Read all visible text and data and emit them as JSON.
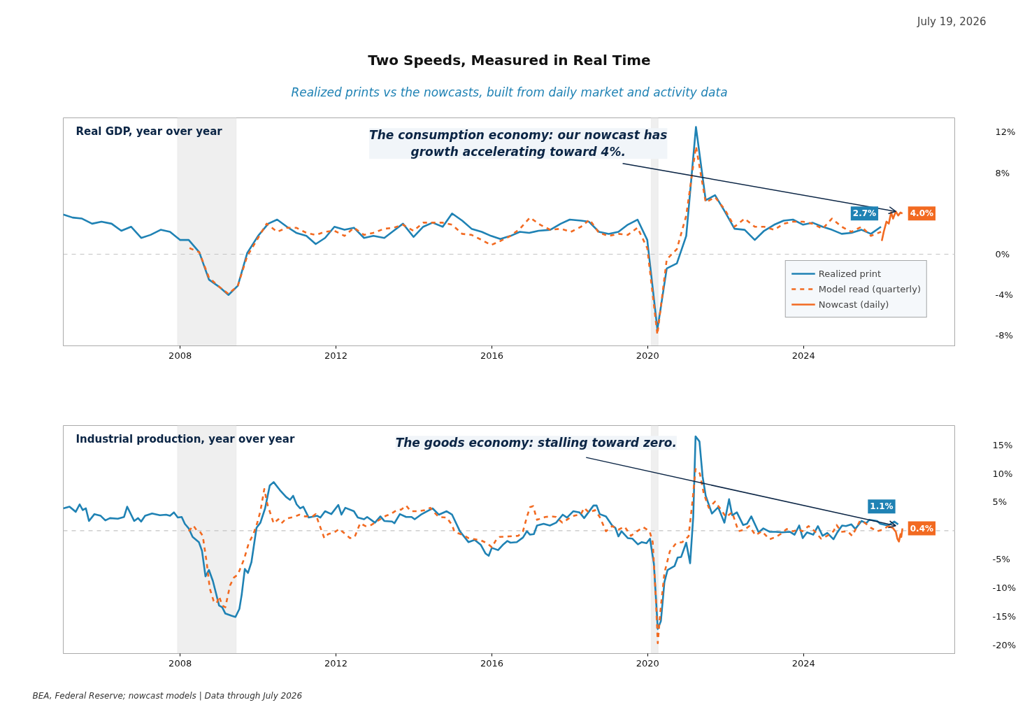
{
  "chart_data": [
    {
      "type": "line",
      "title": "Real GDP, year over year",
      "xlim": [
        2005,
        2027.9
      ],
      "ylim": [
        -9,
        13.4
      ],
      "xticks": [
        2008,
        2012,
        2016,
        2020,
        2024
      ],
      "yticks": [
        {
          "value": -8,
          "label": "-8%"
        },
        {
          "value": -4,
          "label": "-4%"
        },
        {
          "value": 0,
          "label": "0%"
        },
        {
          "value": 8,
          "label": "8%"
        },
        {
          "value": 12,
          "label": "12%"
        }
      ],
      "legend": "bottom right",
      "bands": [
        {
          "axis": "x",
          "from": 2007.93,
          "to": 2009.44,
          "color": "#efefef"
        },
        {
          "axis": "x",
          "from": 2020.09,
          "to": 2020.27,
          "color": "#efefef"
        }
      ],
      "ref_lines": [
        {
          "axis": "y",
          "value": 0,
          "color": "#c4c4c4",
          "line_style": "dashed"
        }
      ],
      "annotations": [
        "Two Speeds, Measured in Real Time",
        "Realized prints vs the nowcasts, built from daily market and activity data",
        "July 19, 2026",
        {
          "text": "The consumption economy: our nowcast has\ngrowth accelerating toward 4%.",
          "x": 2026.37,
          "y": 4.2
        }
      ],
      "series": [
        {
          "name": "Realized print",
          "color": "#1f82b4",
          "line_style": "solid",
          "x": [
            2005.0,
            2005.24,
            2005.48,
            2005.74,
            2005.98,
            2006.24,
            2006.49,
            2006.74,
            2007.0,
            2007.24,
            2007.5,
            2007.74,
            2008.0,
            2008.22,
            2008.49,
            2008.74,
            2009.0,
            2009.24,
            2009.48,
            2009.72,
            2010.0,
            2010.26,
            2010.49,
            2010.74,
            2010.98,
            2011.24,
            2011.48,
            2011.72,
            2011.96,
            2012.22,
            2012.46,
            2012.72,
            2012.96,
            2013.24,
            2013.48,
            2013.72,
            2013.99,
            2014.24,
            2014.48,
            2014.74,
            2014.98,
            2015.24,
            2015.48,
            2015.74,
            2015.98,
            2016.22,
            2016.48,
            2016.72,
            2016.96,
            2017.2,
            2017.5,
            2017.77,
            2018.0,
            2018.29,
            2018.49,
            2018.75,
            2019.0,
            2019.25,
            2019.49,
            2019.74,
            2019.99,
            2020.25,
            2020.49,
            2020.75,
            2020.99,
            2021.24,
            2021.49,
            2021.73,
            2021.98,
            2022.23,
            2022.49,
            2022.75,
            2022.99,
            2023.25,
            2023.49,
            2023.73,
            2023.99,
            2024.23,
            2024.49,
            2024.73,
            2024.98,
            2025.23,
            2025.49,
            2025.73,
            2025.99
          ],
          "values": [
            3.9,
            3.6,
            3.5,
            3.0,
            3.2,
            3.0,
            2.3,
            2.7,
            1.6,
            1.9,
            2.4,
            2.2,
            1.4,
            1.4,
            0.2,
            -2.5,
            -3.2,
            -4.0,
            -3.1,
            0.1,
            1.8,
            3.0,
            3.4,
            2.7,
            2.1,
            1.8,
            1.0,
            1.6,
            2.7,
            2.4,
            2.6,
            1.6,
            1.8,
            1.6,
            2.3,
            3.0,
            1.7,
            2.7,
            3.1,
            2.7,
            4.0,
            3.3,
            2.5,
            2.2,
            1.8,
            1.5,
            1.8,
            2.2,
            2.1,
            2.3,
            2.4,
            3.0,
            3.4,
            3.3,
            3.2,
            2.2,
            2.0,
            2.2,
            2.9,
            3.4,
            1.4,
            -7.4,
            -1.4,
            -0.9,
            1.8,
            12.5,
            5.3,
            5.8,
            4.2,
            2.5,
            2.4,
            1.4,
            2.3,
            2.9,
            3.3,
            3.4,
            2.9,
            3.1,
            2.7,
            2.4,
            2.0,
            2.1,
            2.4,
            2.0,
            2.7
          ],
          "value_labels": [
            null,
            null,
            null,
            null,
            null,
            null,
            null,
            null,
            null,
            null,
            null,
            null,
            null,
            null,
            null,
            null,
            null,
            null,
            null,
            null,
            null,
            null,
            null,
            null,
            null,
            null,
            null,
            null,
            null,
            null,
            null,
            null,
            null,
            null,
            null,
            null,
            null,
            null,
            null,
            null,
            null,
            null,
            null,
            null,
            null,
            null,
            null,
            null,
            null,
            null,
            null,
            null,
            null,
            null,
            null,
            null,
            null,
            null,
            null,
            null,
            null,
            null,
            null,
            null,
            null,
            null,
            null,
            null,
            null,
            null,
            null,
            null,
            null,
            null,
            null,
            null,
            null,
            null,
            null,
            null,
            null,
            null,
            null,
            null,
            "2.7%"
          ]
        },
        {
          "name": "Model read (quarterly)",
          "color": "#f26a21",
          "line_style": "dashed",
          "x": [
            2008.24,
            2008.49,
            2008.74,
            2009.0,
            2009.24,
            2009.48,
            2009.72,
            2010.0,
            2010.22,
            2010.49,
            2010.74,
            2010.98,
            2011.24,
            2011.48,
            2011.72,
            2011.96,
            2012.22,
            2012.46,
            2012.72,
            2012.96,
            2013.24,
            2013.48,
            2013.72,
            2013.99,
            2014.24,
            2014.48,
            2014.74,
            2014.98,
            2015.24,
            2015.48,
            2015.74,
            2015.98,
            2016.22,
            2016.48,
            2016.72,
            2016.98,
            2017.24,
            2017.5,
            2017.77,
            2018.03,
            2018.29,
            2018.51,
            2018.75,
            2019.0,
            2019.25,
            2019.49,
            2019.74,
            2019.99,
            2020.25,
            2020.49,
            2020.75,
            2020.99,
            2021.24,
            2021.49,
            2021.73,
            2021.98,
            2022.23,
            2022.49,
            2022.75,
            2022.99,
            2023.25,
            2023.49,
            2023.73,
            2023.99,
            2024.23,
            2024.49,
            2024.73,
            2024.98,
            2025.23,
            2025.49,
            2025.73,
            2025.99
          ],
          "values": [
            0.6,
            0.2,
            -2.3,
            -3.2,
            -3.9,
            -3.1,
            -0.2,
            1.6,
            3.0,
            2.2,
            2.6,
            2.6,
            2.1,
            1.9,
            2.2,
            2.3,
            1.8,
            2.6,
            1.9,
            2.1,
            2.5,
            2.6,
            2.9,
            2.3,
            3.1,
            3.1,
            3.1,
            2.9,
            2.0,
            1.9,
            1.4,
            0.9,
            1.3,
            1.8,
            2.5,
            3.6,
            2.9,
            2.4,
            2.5,
            2.2,
            2.7,
            3.4,
            2.1,
            1.8,
            2.0,
            1.9,
            2.6,
            0.6,
            -7.9,
            -0.5,
            0.5,
            3.8,
            10.6,
            5.1,
            5.6,
            4.4,
            2.7,
            3.5,
            2.7,
            2.7,
            2.4,
            3.0,
            3.2,
            3.2,
            3.0,
            2.5,
            3.5,
            2.7,
            2.2,
            2.7,
            1.8,
            2.2
          ]
        },
        {
          "name": "Nowcast (daily)",
          "color": "#f26a21",
          "line_style": "solid",
          "x": [
            2026.01,
            2026.06,
            2026.13,
            2026.19,
            2026.25,
            2026.3,
            2026.37,
            2026.43,
            2026.49,
            2026.54
          ],
          "values": [
            1.3,
            2.2,
            3.2,
            3.0,
            4.1,
            3.5,
            4.2,
            3.8,
            4.1,
            4.0
          ],
          "value_labels": [
            null,
            null,
            null,
            null,
            null,
            null,
            null,
            null,
            null,
            "4.0%"
          ]
        }
      ]
    },
    {
      "type": "line",
      "title": "Industrial production, year over year",
      "xlim": [
        2005,
        2027.9
      ],
      "ylim": [
        -21.5,
        18.4
      ],
      "xticks": [
        2008,
        2012,
        2016,
        2020,
        2024
      ],
      "yticks": [
        {
          "value": -20,
          "label": "-20%"
        },
        {
          "value": -15,
          "label": "-15%"
        },
        {
          "value": -10,
          "label": "-10%"
        },
        {
          "value": -5,
          "label": "-5%"
        },
        {
          "value": 5,
          "label": "5%"
        },
        {
          "value": 10,
          "label": "10%"
        },
        {
          "value": 15,
          "label": "15%"
        }
      ],
      "bands": [
        {
          "axis": "x",
          "from": 2007.93,
          "to": 2009.44,
          "color": "#efefef"
        },
        {
          "axis": "x",
          "from": 2020.09,
          "to": 2020.27,
          "color": "#efefef"
        }
      ],
      "ref_lines": [
        {
          "axis": "y",
          "value": 0,
          "color": "#c4c4c4",
          "line_style": "dashed"
        }
      ],
      "annotations": [
        "BEA, Federal Reserve; nowcast models | Data through July 2026",
        {
          "text": "The goods economy: stalling toward zero.",
          "x": 2026.37,
          "y": 0.85
        }
      ],
      "series": [
        {
          "color": "#1f82b4",
          "line_style": "solid",
          "x": [
            2005.0,
            2005.16,
            2005.32,
            2005.42,
            2005.5,
            2005.58,
            2005.66,
            2005.8,
            2005.96,
            2006.08,
            2006.2,
            2006.4,
            2006.56,
            2006.64,
            2006.82,
            2006.92,
            2007.0,
            2007.1,
            2007.28,
            2007.48,
            2007.64,
            2007.74,
            2007.84,
            2007.94,
            2008.04,
            2008.12,
            2008.22,
            2008.32,
            2008.48,
            2008.56,
            2008.65,
            2008.74,
            2008.84,
            2009.0,
            2009.08,
            2009.16,
            2009.32,
            2009.42,
            2009.52,
            2009.58,
            2009.66,
            2009.74,
            2009.83,
            2009.96,
            2010.06,
            2010.18,
            2010.3,
            2010.4,
            2010.56,
            2010.72,
            2010.82,
            2010.9,
            2010.99,
            2011.08,
            2011.16,
            2011.3,
            2011.52,
            2011.6,
            2011.72,
            2011.88,
            2012.06,
            2012.14,
            2012.24,
            2012.46,
            2012.56,
            2012.72,
            2012.8,
            2013.0,
            2013.14,
            2013.24,
            2013.44,
            2013.5,
            2013.64,
            2013.8,
            2013.94,
            2014.02,
            2014.18,
            2014.48,
            2014.64,
            2014.84,
            2014.98,
            2015.18,
            2015.4,
            2015.56,
            2015.72,
            2015.84,
            2015.92,
            2016.0,
            2016.16,
            2016.28,
            2016.4,
            2016.48,
            2016.64,
            2016.8,
            2016.9,
            2016.98,
            2017.08,
            2017.16,
            2017.33,
            2017.49,
            2017.65,
            2017.82,
            2017.93,
            2018.09,
            2018.25,
            2018.37,
            2018.61,
            2018.69,
            2018.77,
            2018.93,
            2019.09,
            2019.17,
            2019.25,
            2019.33,
            2019.49,
            2019.61,
            2019.75,
            2019.85,
            2019.97,
            2020.06,
            2020.16,
            2020.26,
            2020.34,
            2020.43,
            2020.51,
            2020.69,
            2020.77,
            2020.86,
            2020.99,
            2021.09,
            2021.17,
            2021.23,
            2021.33,
            2021.41,
            2021.49,
            2021.65,
            2021.81,
            2021.97,
            2022.09,
            2022.17,
            2022.29,
            2022.45,
            2022.55,
            2022.66,
            2022.85,
            2022.97,
            2023.13,
            2023.29,
            2023.45,
            2023.65,
            2023.77,
            2023.89,
            2023.98,
            2024.09,
            2024.25,
            2024.37,
            2024.49,
            2024.61,
            2024.77,
            2024.86,
            2024.99,
            2025.09,
            2025.23,
            2025.33,
            2025.49,
            2025.61,
            2025.69,
            2025.89,
            2025.97,
            2026.17,
            2026.33,
            2026.43
          ],
          "values": [
            3.9,
            4.2,
            3.3,
            4.6,
            3.6,
            3.9,
            1.7,
            2.9,
            2.6,
            1.8,
            2.2,
            2.1,
            2.4,
            4.2,
            1.7,
            2.2,
            1.6,
            2.6,
            3.0,
            2.7,
            2.8,
            2.6,
            3.2,
            2.3,
            2.4,
            1.2,
            0.4,
            -1.1,
            -2.0,
            -3.5,
            -8.0,
            -6.9,
            -8.8,
            -13.1,
            -13.4,
            -14.5,
            -14.9,
            -15.1,
            -13.7,
            -11.2,
            -6.7,
            -7.4,
            -5.5,
            0.5,
            1.4,
            3.9,
            7.9,
            8.5,
            7.1,
            5.9,
            5.4,
            6.1,
            4.6,
            3.9,
            4.2,
            2.3,
            2.6,
            2.3,
            3.4,
            2.9,
            4.5,
            2.8,
            4.0,
            3.4,
            2.3,
            2.0,
            2.4,
            1.4,
            2.5,
            1.7,
            1.6,
            1.3,
            2.9,
            2.4,
            2.4,
            2.0,
            2.8,
            3.9,
            2.8,
            3.4,
            2.8,
            -0.1,
            -2.0,
            -1.6,
            -2.5,
            -4.0,
            -4.4,
            -3.0,
            -3.4,
            -2.5,
            -1.8,
            -2.1,
            -2.0,
            -1.2,
            -0.1,
            -0.7,
            -0.6,
            0.9,
            1.2,
            0.9,
            1.4,
            2.8,
            2.3,
            3.4,
            3.2,
            2.2,
            4.4,
            4.4,
            2.9,
            2.5,
            0.9,
            0.5,
            -1.0,
            -0.1,
            -1.3,
            -1.4,
            -2.4,
            -2.0,
            -2.2,
            -1.4,
            -5.8,
            -17.2,
            -15.8,
            -9.0,
            -6.9,
            -6.2,
            -4.7,
            -4.6,
            -2.1,
            -5.7,
            2.4,
            16.5,
            15.6,
            9.5,
            6.1,
            3.0,
            4.1,
            1.4,
            5.5,
            2.7,
            3.2,
            1.0,
            1.2,
            2.5,
            -0.3,
            0.4,
            -0.2,
            -0.2,
            -0.3,
            -0.2,
            -0.7,
            0.9,
            -1.3,
            -0.3,
            -0.7,
            0.8,
            -0.9,
            -0.4,
            -1.5,
            -0.4,
            0.9,
            0.8,
            1.1,
            0.3,
            1.7,
            1.3,
            1.9,
            1.7,
            1.2,
            0.9,
            1.6,
            1.1
          ],
          "value_labels": [
            null,
            null,
            null,
            null,
            null,
            null,
            null,
            null,
            null,
            null,
            null,
            null,
            null,
            null,
            null,
            null,
            null,
            null,
            null,
            null,
            null,
            null,
            null,
            null,
            null,
            null,
            null,
            null,
            null,
            null,
            null,
            null,
            null,
            null,
            null,
            null,
            null,
            null,
            null,
            null,
            null,
            null,
            null,
            null,
            null,
            null,
            null,
            null,
            null,
            null,
            null,
            null,
            null,
            null,
            null,
            null,
            null,
            null,
            null,
            null,
            null,
            null,
            null,
            null,
            null,
            null,
            null,
            null,
            null,
            null,
            null,
            null,
            null,
            null,
            null,
            null,
            null,
            null,
            null,
            null,
            null,
            null,
            null,
            null,
            null,
            null,
            null,
            null,
            null,
            null,
            null,
            null,
            null,
            null,
            null,
            null,
            null,
            null,
            null,
            null,
            null,
            null,
            null,
            null,
            null,
            null,
            null,
            null,
            null,
            null,
            null,
            null,
            null,
            null,
            null,
            null,
            null,
            null,
            null,
            null,
            null,
            null,
            null,
            null,
            null,
            null,
            null,
            null,
            null,
            null,
            null,
            null,
            null,
            null,
            null,
            null,
            null,
            null,
            null,
            null,
            null,
            null,
            null,
            null,
            null,
            null,
            null,
            null,
            null,
            null,
            null,
            null,
            null,
            null,
            null,
            null,
            null,
            null,
            null,
            null,
            null,
            null,
            null,
            null,
            null,
            null,
            null,
            null,
            null,
            null,
            null,
            "1.1%"
          ]
        },
        {
          "color": "#f26a21",
          "line_style": "dashed",
          "x": [
            2008.22,
            2008.34,
            2008.44,
            2008.52,
            2008.58,
            2008.68,
            2008.76,
            2008.86,
            2008.94,
            2009.0,
            2009.08,
            2009.16,
            2009.28,
            2009.38,
            2009.48,
            2009.64,
            2009.76,
            2009.88,
            2009.98,
            2010.06,
            2010.16,
            2010.24,
            2010.4,
            2010.52,
            2010.6,
            2010.72,
            2010.92,
            2011.06,
            2011.2,
            2011.4,
            2011.48,
            2011.56,
            2011.7,
            2011.8,
            2011.96,
            2012.08,
            2012.24,
            2012.36,
            2012.48,
            2012.62,
            2012.76,
            2012.88,
            2013.0,
            2013.16,
            2013.28,
            2013.4,
            2013.56,
            2013.68,
            2013.8,
            2013.92,
            2014.12,
            2014.28,
            2014.42,
            2014.52,
            2014.64,
            2014.84,
            2014.98,
            2015.04,
            2015.24,
            2015.4,
            2015.56,
            2015.72,
            2015.88,
            2016.0,
            2016.12,
            2016.2,
            2016.44,
            2016.68,
            2016.8,
            2016.9,
            2016.98,
            2017.06,
            2017.16,
            2017.37,
            2017.53,
            2017.65,
            2017.81,
            2017.97,
            2018.11,
            2018.29,
            2018.37,
            2018.49,
            2018.65,
            2018.77,
            2018.93,
            2019.09,
            2019.25,
            2019.41,
            2019.57,
            2019.73,
            2019.89,
            2020.05,
            2020.13,
            2020.21,
            2020.26,
            2020.33,
            2020.43,
            2020.57,
            2020.73,
            2020.89,
            2021.05,
            2021.15,
            2021.23,
            2021.34,
            2021.44,
            2021.57,
            2021.73,
            2021.89,
            2022.01,
            2022.17,
            2022.33,
            2022.49,
            2022.61,
            2022.77,
            2022.93,
            2023.13,
            2023.29,
            2023.41,
            2023.57,
            2023.73,
            2023.89,
            2023.97,
            2024.13,
            2024.29,
            2024.45,
            2024.61,
            2024.77,
            2024.85,
            2024.97,
            2025.13,
            2025.25,
            2025.45,
            2025.57,
            2025.73,
            2025.89,
            2026.05,
            2026.17
          ],
          "values": [
            -0.1,
            0.9,
            -0.1,
            -0.3,
            -0.9,
            -5.5,
            -10.1,
            -12.3,
            -12.7,
            -11.5,
            -13.1,
            -13.4,
            -9.6,
            -8.2,
            -7.7,
            -5.0,
            -2.2,
            -0.6,
            1.4,
            3.4,
            7.3,
            4.6,
            1.3,
            2.0,
            1.3,
            2.1,
            2.4,
            2.8,
            2.5,
            2.5,
            2.9,
            1.3,
            -1.3,
            -0.6,
            -0.3,
            0.3,
            -0.6,
            -1.3,
            -1.1,
            1.3,
            0.8,
            0.9,
            1.4,
            2.1,
            2.6,
            2.9,
            3.6,
            3.7,
            4.4,
            3.4,
            3.4,
            3.6,
            4.0,
            3.2,
            2.4,
            2.3,
            1.0,
            -0.2,
            -0.7,
            -1.3,
            -1.5,
            -1.7,
            -2.2,
            -2.9,
            -1.5,
            -1.1,
            -1.0,
            -0.9,
            -0.1,
            2.4,
            4.1,
            4.3,
            1.9,
            2.4,
            2.5,
            2.4,
            1.4,
            2.1,
            2.6,
            2.9,
            4.0,
            3.2,
            3.6,
            2.4,
            -0.1,
            0.8,
            0.2,
            0.7,
            -0.9,
            -0.1,
            0.6,
            -0.1,
            -2.0,
            -11.8,
            -19.7,
            -13.9,
            -7.4,
            -3.6,
            -2.2,
            -2.0,
            -1.0,
            5.1,
            10.8,
            10.0,
            6.5,
            4.0,
            5.1,
            3.6,
            2.4,
            3.2,
            -0.1,
            0.2,
            0.8,
            -0.8,
            -0.1,
            -1.5,
            -1.1,
            -0.6,
            0.3,
            -0.1,
            0.2,
            -0.1,
            0.8,
            -0.1,
            -1.4,
            -0.9,
            -0.1,
            1.0,
            -0.2,
            -0.1,
            -0.9,
            1.7,
            1.4,
            0.5,
            -0.1,
            0.2,
            0.8
          ]
        },
        {
          "color": "#f26a21",
          "line_style": "solid",
          "x": [
            2026.17,
            2026.29,
            2026.37,
            2026.41,
            2026.45,
            2026.49,
            2026.51,
            2026.54
          ],
          "values": [
            0.8,
            0.5,
            -0.2,
            -1.4,
            -1.9,
            -0.6,
            -1.1,
            0.4
          ],
          "value_labels": [
            null,
            null,
            null,
            null,
            null,
            null,
            null,
            "0.4%"
          ]
        }
      ]
    }
  ]
}
